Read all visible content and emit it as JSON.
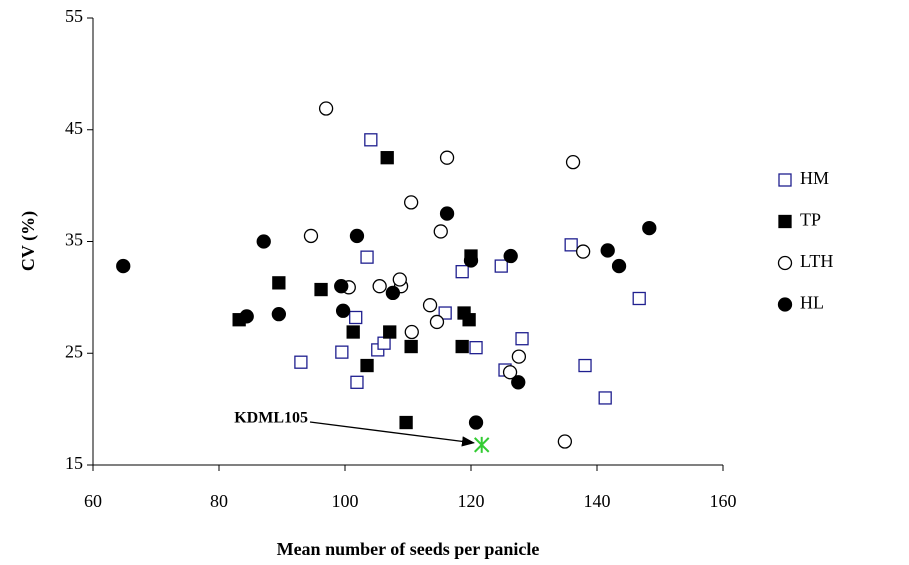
{
  "chart_data": {
    "type": "scatter",
    "x_label": "Mean number of seeds per panicle",
    "y_label": "CV (%)",
    "xlim": [
      60,
      160
    ],
    "xticks": [
      60,
      80,
      100,
      120,
      140,
      160
    ],
    "ylim": [
      15,
      55
    ],
    "yticks": [
      15,
      25,
      35,
      45,
      55
    ],
    "legend": "right",
    "grid": false,
    "series": [
      {
        "name": "HM",
        "marker": "square",
        "filled": false,
        "color": "#1f1f8f",
        "x": [
          104.1,
          103.5,
          101.7,
          99.5,
          93.0,
          101.9,
          105.2,
          106.2,
          115.9,
          118.6,
          120.8,
          124.8,
          125.4,
          128.1,
          135.9,
          138.1,
          141.3,
          146.7
        ],
        "y": [
          44.1,
          33.6,
          28.2,
          25.1,
          24.2,
          22.4,
          25.3,
          25.9,
          28.6,
          32.3,
          25.5,
          32.8,
          23.5,
          26.3,
          34.7,
          23.9,
          21.0,
          29.9
        ]
      },
      {
        "name": "TP",
        "marker": "square",
        "filled": true,
        "color": "#000000",
        "x": [
          106.7,
          83.2,
          89.5,
          96.2,
          101.3,
          103.5,
          107.1,
          110.5,
          109.7,
          120.0,
          118.9,
          119.7,
          118.6
        ],
        "y": [
          42.5,
          28.0,
          31.3,
          30.7,
          26.9,
          23.9,
          26.9,
          25.6,
          18.8,
          33.7,
          28.6,
          28.0,
          25.6
        ]
      },
      {
        "name": "LTH",
        "marker": "circle",
        "filled": false,
        "color": "#000000",
        "x": [
          97.0,
          94.6,
          100.6,
          105.5,
          108.9,
          110.5,
          108.7,
          110.6,
          113.5,
          114.6,
          115.2,
          116.2,
          126.2,
          127.6,
          136.2,
          137.8,
          134.9
        ],
        "y": [
          46.9,
          35.5,
          30.9,
          31.0,
          31.0,
          38.5,
          31.6,
          26.9,
          29.3,
          27.8,
          35.9,
          42.5,
          23.3,
          24.7,
          42.1,
          34.1,
          17.1
        ]
      },
      {
        "name": "HL",
        "marker": "circle",
        "filled": true,
        "color": "#000000",
        "x": [
          64.8,
          84.4,
          87.1,
          89.5,
          99.4,
          99.7,
          101.9,
          107.6,
          116.2,
          120.0,
          126.3,
          127.5,
          120.8,
          141.7,
          143.5,
          148.3
        ],
        "y": [
          32.8,
          28.3,
          35.0,
          28.5,
          31.0,
          28.8,
          35.5,
          30.4,
          37.5,
          33.3,
          33.7,
          22.4,
          18.8,
          34.2,
          32.8,
          36.2
        ]
      }
    ],
    "annotations": [
      {
        "text": "KDML105",
        "x": 121.7,
        "y": 16.8,
        "color": "#33cc33"
      }
    ]
  }
}
